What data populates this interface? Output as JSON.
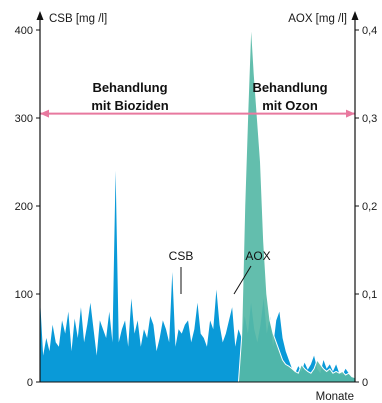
{
  "chart_data": {
    "type": "area",
    "title": "",
    "xlabel": "Monate",
    "ylabel_left": "CSB [mg /l]",
    "ylabel_right": "AOX [mg /l]",
    "ylim_left": [
      0,
      400
    ],
    "ylim_right": [
      0,
      0.4
    ],
    "yticks_left": [
      "0",
      "100",
      "200",
      "300",
      "400"
    ],
    "yticks_right": [
      "0",
      "0,1",
      "0,2",
      "0,3",
      "0,4"
    ],
    "grid": false,
    "colors": {
      "csb_fill": "#0a9ad8",
      "aox_fill": "#56b8a6",
      "aox_line": "#ffffff",
      "reference_line": "#e8799f",
      "axis": "#111111"
    },
    "reference_line": {
      "axis": "left",
      "value": 305
    },
    "annotations": [
      {
        "id": "biozide",
        "lines": [
          "Behandlung",
          "mit Bioziden"
        ]
      },
      {
        "id": "ozon",
        "lines": [
          "Behandlung",
          "mit Ozon"
        ]
      }
    ],
    "series": [
      {
        "name": "CSB",
        "axis": "left",
        "x": [
          0,
          1,
          2,
          3,
          4,
          5,
          6,
          7,
          8,
          9,
          10,
          11,
          12,
          13,
          14,
          15,
          16,
          17,
          18,
          19,
          20,
          21,
          22,
          23,
          24,
          25,
          26,
          27,
          28,
          29,
          30,
          31,
          32,
          33,
          34,
          35,
          36,
          37,
          38,
          39,
          40,
          41,
          42,
          43,
          44,
          45,
          46,
          47,
          48,
          49,
          50,
          51,
          52,
          53,
          54,
          55,
          56,
          57,
          58,
          59,
          60,
          61,
          62,
          63,
          64,
          65,
          66,
          67,
          68,
          69,
          70,
          71,
          72,
          73,
          74,
          75,
          76,
          77,
          78,
          79,
          80,
          81,
          82,
          83,
          84,
          85,
          86,
          87,
          88,
          89,
          90,
          91,
          92,
          93,
          94,
          95,
          96,
          97,
          98,
          99,
          100
        ],
        "values": [
          95,
          30,
          50,
          35,
          65,
          45,
          40,
          70,
          55,
          80,
          35,
          72,
          50,
          85,
          45,
          65,
          90,
          60,
          30,
          70,
          60,
          50,
          80,
          45,
          240,
          45,
          60,
          70,
          40,
          95,
          55,
          70,
          40,
          60,
          50,
          75,
          65,
          35,
          50,
          70,
          60,
          45,
          125,
          40,
          60,
          55,
          65,
          70,
          45,
          60,
          90,
          55,
          50,
          40,
          70,
          60,
          105,
          65,
          45,
          55,
          70,
          85,
          40,
          60,
          50,
          75,
          55,
          90,
          60,
          45,
          65,
          95,
          55,
          75,
          40,
          70,
          80,
          50,
          35,
          25,
          15,
          10,
          18,
          12,
          22,
          14,
          20,
          30,
          15,
          10,
          25,
          15,
          20,
          12,
          20,
          10,
          8,
          15,
          10,
          6,
          5
        ]
      },
      {
        "name": "AOX",
        "axis": "right",
        "x": [
          0,
          1,
          2,
          3,
          4,
          5,
          6,
          7,
          8,
          9,
          10,
          11,
          12,
          13,
          14,
          15,
          16,
          17,
          18,
          19,
          20,
          21,
          22,
          23,
          24,
          25,
          26,
          27,
          28,
          29,
          30,
          31,
          32,
          33,
          34,
          35,
          36,
          37,
          38,
          39,
          40,
          41,
          42,
          43,
          44,
          45,
          46,
          47,
          48,
          49,
          50,
          51,
          52,
          53,
          54,
          55,
          56,
          57,
          58,
          59,
          60,
          61,
          62,
          63,
          64,
          65,
          66,
          67,
          68,
          69,
          70,
          71,
          72,
          73,
          74,
          75,
          76,
          77,
          78,
          79,
          80,
          81,
          82,
          83,
          84,
          85,
          86,
          87,
          88,
          89,
          90,
          91,
          92,
          93,
          94,
          95,
          96,
          97,
          98,
          99,
          100
        ],
        "values": [
          0,
          0,
          0,
          0,
          0,
          0,
          0,
          0,
          0,
          0,
          0,
          0,
          0,
          0,
          0,
          0,
          0,
          0,
          0,
          0,
          0,
          0,
          0,
          0,
          0,
          0,
          0,
          0,
          0,
          0,
          0,
          0,
          0,
          0,
          0,
          0,
          0,
          0,
          0,
          0,
          0,
          0,
          0,
          0,
          0,
          0,
          0,
          0,
          0,
          0,
          0,
          0,
          0,
          0,
          0,
          0,
          0,
          0,
          0,
          0,
          0,
          0,
          0,
          0,
          0.05,
          0.2,
          0.31,
          0.41,
          0.35,
          0.3,
          0.25,
          0.16,
          0.1,
          0.07,
          0.055,
          0.045,
          0.035,
          0.025,
          0.02,
          0.018,
          0.015,
          0.012,
          0.01,
          0.02,
          0.015,
          0.012,
          0.01,
          0.015,
          0.025,
          0.02,
          0.015,
          0.012,
          0.015,
          0.01,
          0.012,
          0.01,
          0.012,
          0.008,
          0.01,
          0.006,
          0.005
        ]
      }
    ]
  }
}
